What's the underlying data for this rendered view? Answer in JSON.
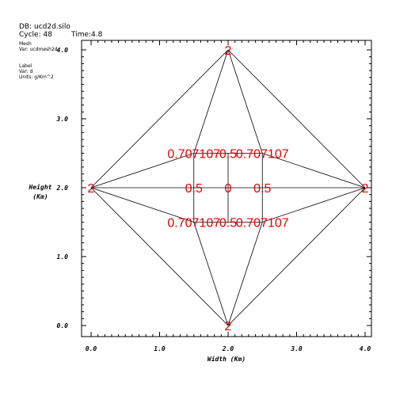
{
  "header": {
    "db": "DB: ucd2d.silo",
    "cycle": "Cycle: 48",
    "time": "Time:4.8"
  },
  "legend": {
    "mesh_title": "Mesh",
    "mesh_var": "Var: ucdmesh2d",
    "label_title": "Label",
    "label_var": "Var: d",
    "label_units": "Units: g/Km^2"
  },
  "axes": {
    "xlabel": "Width (Km)",
    "ylabel_line1": "Height",
    "ylabel_line2": "(Km)",
    "xticks": [
      "0.0",
      "1.0",
      "2.0",
      "3.0",
      "4.0"
    ],
    "yticks": [
      "0.0",
      "1.0",
      "2.0",
      "3.0",
      "4.0"
    ]
  },
  "chart_data": {
    "type": "mesh",
    "xlim": [
      -0.15,
      4.05
    ],
    "ylim": [
      -0.15,
      4.05
    ],
    "nodes": [
      {
        "x": 2.0,
        "y": 4.0
      },
      {
        "x": 0.0,
        "y": 2.0
      },
      {
        "x": 4.0,
        "y": 2.0
      },
      {
        "x": 2.0,
        "y": 0.0
      },
      {
        "x": 1.5,
        "y": 2.5
      },
      {
        "x": 2.0,
        "y": 2.5
      },
      {
        "x": 2.5,
        "y": 2.5
      },
      {
        "x": 1.5,
        "y": 2.0
      },
      {
        "x": 2.0,
        "y": 2.0
      },
      {
        "x": 2.5,
        "y": 2.0
      },
      {
        "x": 1.5,
        "y": 1.5
      },
      {
        "x": 2.0,
        "y": 1.5
      },
      {
        "x": 2.5,
        "y": 1.5
      }
    ],
    "edges": [
      [
        0,
        1
      ],
      [
        0,
        2
      ],
      [
        1,
        3
      ],
      [
        2,
        3
      ],
      [
        0,
        4
      ],
      [
        0,
        6
      ],
      [
        1,
        4
      ],
      [
        1,
        10
      ],
      [
        2,
        6
      ],
      [
        2,
        12
      ],
      [
        3,
        10
      ],
      [
        3,
        12
      ],
      [
        4,
        5
      ],
      [
        5,
        6
      ],
      [
        7,
        8
      ],
      [
        8,
        9
      ],
      [
        10,
        11
      ],
      [
        11,
        12
      ],
      [
        4,
        7
      ],
      [
        7,
        10
      ],
      [
        5,
        8
      ],
      [
        8,
        11
      ],
      [
        6,
        9
      ],
      [
        9,
        12
      ],
      [
        1,
        7
      ],
      [
        9,
        2
      ]
    ],
    "labels": [
      {
        "x": 2.0,
        "y": 4.0,
        "text": "2"
      },
      {
        "x": 0.0,
        "y": 2.0,
        "text": "2"
      },
      {
        "x": 4.0,
        "y": 2.0,
        "text": "2"
      },
      {
        "x": 2.0,
        "y": 0.0,
        "text": "2"
      },
      {
        "x": 1.5,
        "y": 2.5,
        "text": "0.707107"
      },
      {
        "x": 2.0,
        "y": 2.5,
        "text": "0.5"
      },
      {
        "x": 2.5,
        "y": 2.5,
        "text": "0.707107"
      },
      {
        "x": 1.5,
        "y": 2.0,
        "text": "0.5"
      },
      {
        "x": 2.0,
        "y": 2.0,
        "text": "0"
      },
      {
        "x": 2.5,
        "y": 2.0,
        "text": "0.5"
      },
      {
        "x": 1.5,
        "y": 1.5,
        "text": "0.707107"
      },
      {
        "x": 2.0,
        "y": 1.5,
        "text": "0.5"
      },
      {
        "x": 2.5,
        "y": 1.5,
        "text": "0.707107"
      }
    ],
    "label_color": "#e00000"
  }
}
